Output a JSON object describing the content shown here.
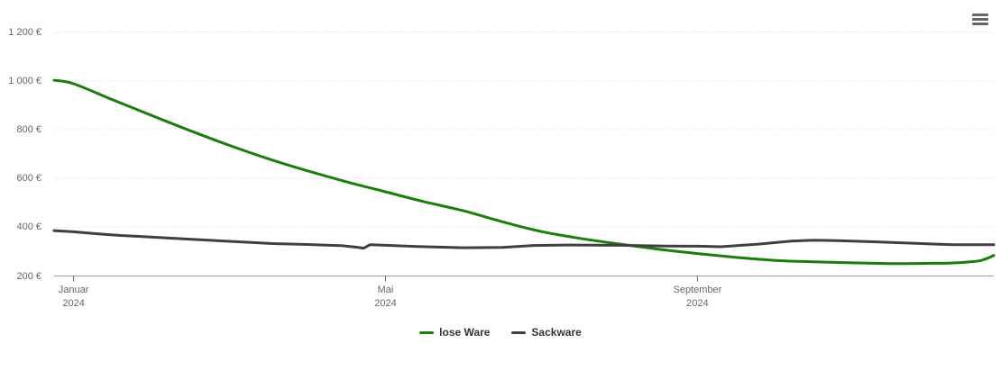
{
  "page": {
    "background": "#ffffff"
  },
  "context_button": {
    "icon": "hamburger-menu-icon"
  },
  "legend": {
    "items": [
      {
        "label": "lose Ware",
        "color": "#1b7e0c"
      },
      {
        "label": "Sackware",
        "color": "#3f3f3f"
      }
    ]
  },
  "chart_data": {
    "type": "line",
    "title": "",
    "xlabel": "",
    "ylabel": "",
    "currency": "EUR",
    "x_unit": "month index, 0 = Januar 2024",
    "xlim": [
      -0.25,
      11.8
    ],
    "ylim": [
      200,
      1200
    ],
    "grid": "horizontal dotted",
    "legend_position": "bottom-center",
    "yticks": [
      {
        "v": 200,
        "label": "200 €"
      },
      {
        "v": 400,
        "label": "400 €"
      },
      {
        "v": 600,
        "label": "600 €"
      },
      {
        "v": 800,
        "label": "800 €"
      },
      {
        "v": 1000,
        "label": "1 000 €"
      },
      {
        "v": 1200,
        "label": "1 200 €"
      }
    ],
    "xticks": [
      {
        "v": 0,
        "label": "Januar",
        "year": "2024"
      },
      {
        "v": 4,
        "label": "Mai",
        "year": "2024"
      },
      {
        "v": 8,
        "label": "September",
        "year": "2024"
      }
    ],
    "series": [
      {
        "name": "lose Ware",
        "color": "#1b7e0c",
        "smooth": true,
        "points": [
          [
            -0.25,
            1002
          ],
          [
            0,
            988
          ],
          [
            0.5,
            922
          ],
          [
            1,
            858
          ],
          [
            1.5,
            795
          ],
          [
            2,
            735
          ],
          [
            2.5,
            680
          ],
          [
            3,
            631
          ],
          [
            3.5,
            586
          ],
          [
            4,
            545
          ],
          [
            4.5,
            504
          ],
          [
            5,
            467
          ],
          [
            5.5,
            422
          ],
          [
            6,
            382
          ],
          [
            6.5,
            354
          ],
          [
            7,
            331
          ],
          [
            7.5,
            310
          ],
          [
            8,
            292
          ],
          [
            8.5,
            276
          ],
          [
            9,
            264
          ],
          [
            9.5,
            258
          ],
          [
            10,
            254
          ],
          [
            10.5,
            251
          ],
          [
            11,
            252
          ],
          [
            11.25,
            253
          ],
          [
            11.5,
            258
          ],
          [
            11.65,
            265
          ],
          [
            11.8,
            284
          ]
        ]
      },
      {
        "name": "Sackware",
        "color": "#3f3f3f",
        "smooth": false,
        "points": [
          [
            -0.25,
            386
          ],
          [
            0,
            381
          ],
          [
            0.3,
            373
          ],
          [
            0.6,
            366
          ],
          [
            0.86,
            362
          ],
          [
            1.3,
            354
          ],
          [
            2,
            342
          ],
          [
            2.55,
            333
          ],
          [
            3,
            329
          ],
          [
            3.45,
            324
          ],
          [
            3.65,
            317
          ],
          [
            3.72,
            314
          ],
          [
            3.8,
            328
          ],
          [
            4,
            326
          ],
          [
            4.4,
            321
          ],
          [
            5,
            316
          ],
          [
            5.5,
            317
          ],
          [
            5.9,
            325
          ],
          [
            6.3,
            327
          ],
          [
            7,
            326
          ],
          [
            7.6,
            323
          ],
          [
            8,
            322
          ],
          [
            8.3,
            320
          ],
          [
            8.8,
            331
          ],
          [
            9.2,
            343
          ],
          [
            9.5,
            347
          ],
          [
            9.8,
            345
          ],
          [
            10.3,
            340
          ],
          [
            10.8,
            334
          ],
          [
            11.1,
            330
          ],
          [
            11.3,
            328
          ],
          [
            11.8,
            328
          ]
        ]
      }
    ]
  }
}
